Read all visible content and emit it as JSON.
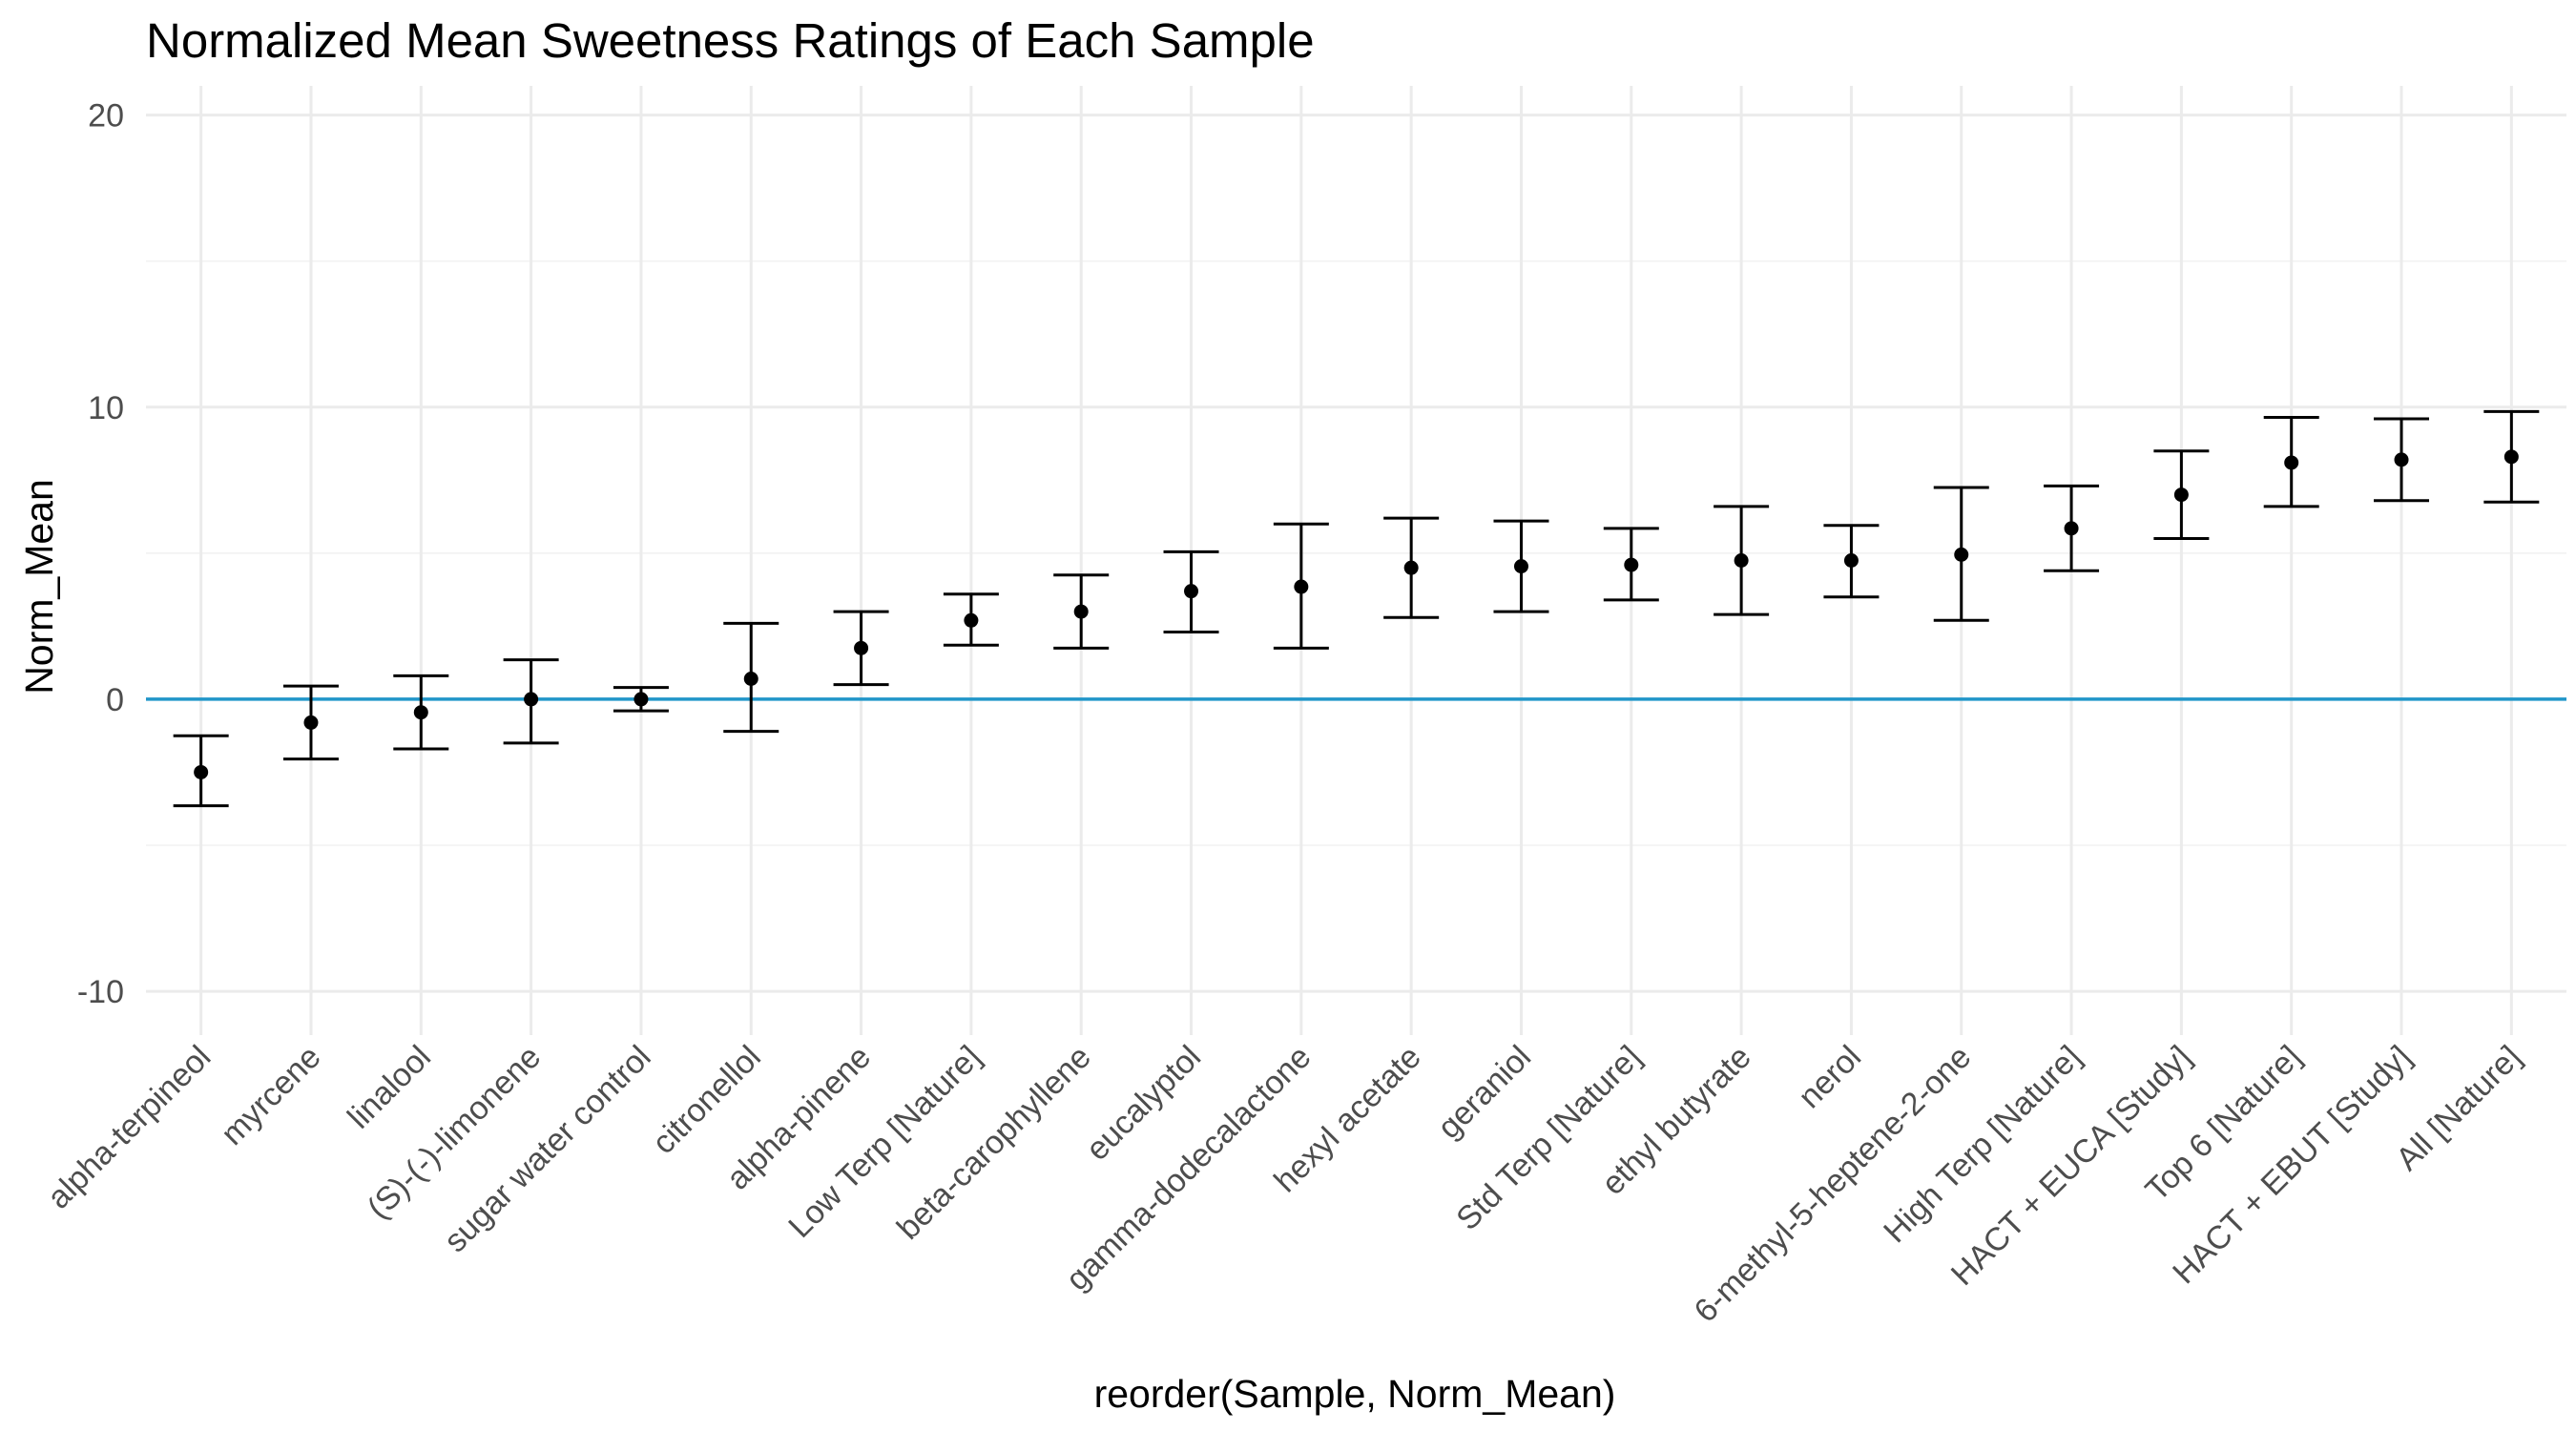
{
  "chart_data": {
    "type": "scatter",
    "title": "Normalized Mean Sweetness Ratings of Each Sample",
    "xlabel": "reorder(Sample, Norm_Mean)",
    "ylabel": "Norm_Mean",
    "ylim": [
      -11.5,
      21
    ],
    "yticks": [
      -10,
      0,
      10,
      20
    ],
    "ytick_labels": [
      "-10",
      "0",
      "10",
      "20"
    ],
    "grid": true,
    "reference_line": {
      "y": 0,
      "color": "#2196C9"
    },
    "point_color": "#000000",
    "categories": [
      "alpha-terpineol",
      "myrcene",
      "linalool",
      "(S)-(-)-limonene",
      "sugar water control",
      "citronellol",
      "alpha-pinene",
      "Low Terp [Nature]",
      "beta-carophyllene",
      "eucalyptol",
      "gamma-dodecalactone",
      "hexyl acetate",
      "geraniol",
      "Std Terp [Nature]",
      "ethyl butyrate",
      "nerol",
      "6-methyl-5-heptene-2-one",
      "High Terp [Nature]",
      "HACT + EUCA [Study]",
      "Top 6 [Nature]",
      "HACT + EBUT [Study]",
      "All [Nature]"
    ],
    "values": [
      -2.5,
      -0.8,
      -0.45,
      0.0,
      0.0,
      0.7,
      1.75,
      2.7,
      3.0,
      3.7,
      3.85,
      4.5,
      4.55,
      4.6,
      4.75,
      4.75,
      4.95,
      5.85,
      7.0,
      8.1,
      8.2,
      8.3
    ],
    "ymin": [
      -3.65,
      -2.05,
      -1.7,
      -1.5,
      -0.4,
      -1.1,
      0.5,
      1.85,
      1.75,
      2.3,
      1.75,
      2.8,
      3.0,
      3.4,
      2.9,
      3.5,
      2.7,
      4.4,
      5.5,
      6.6,
      6.8,
      6.75
    ],
    "ymax": [
      -1.25,
      0.45,
      0.8,
      1.35,
      0.4,
      2.6,
      3.0,
      3.6,
      4.25,
      5.05,
      6.0,
      6.2,
      6.1,
      5.85,
      6.6,
      5.95,
      7.25,
      7.3,
      8.5,
      9.65,
      9.6,
      9.85
    ]
  }
}
